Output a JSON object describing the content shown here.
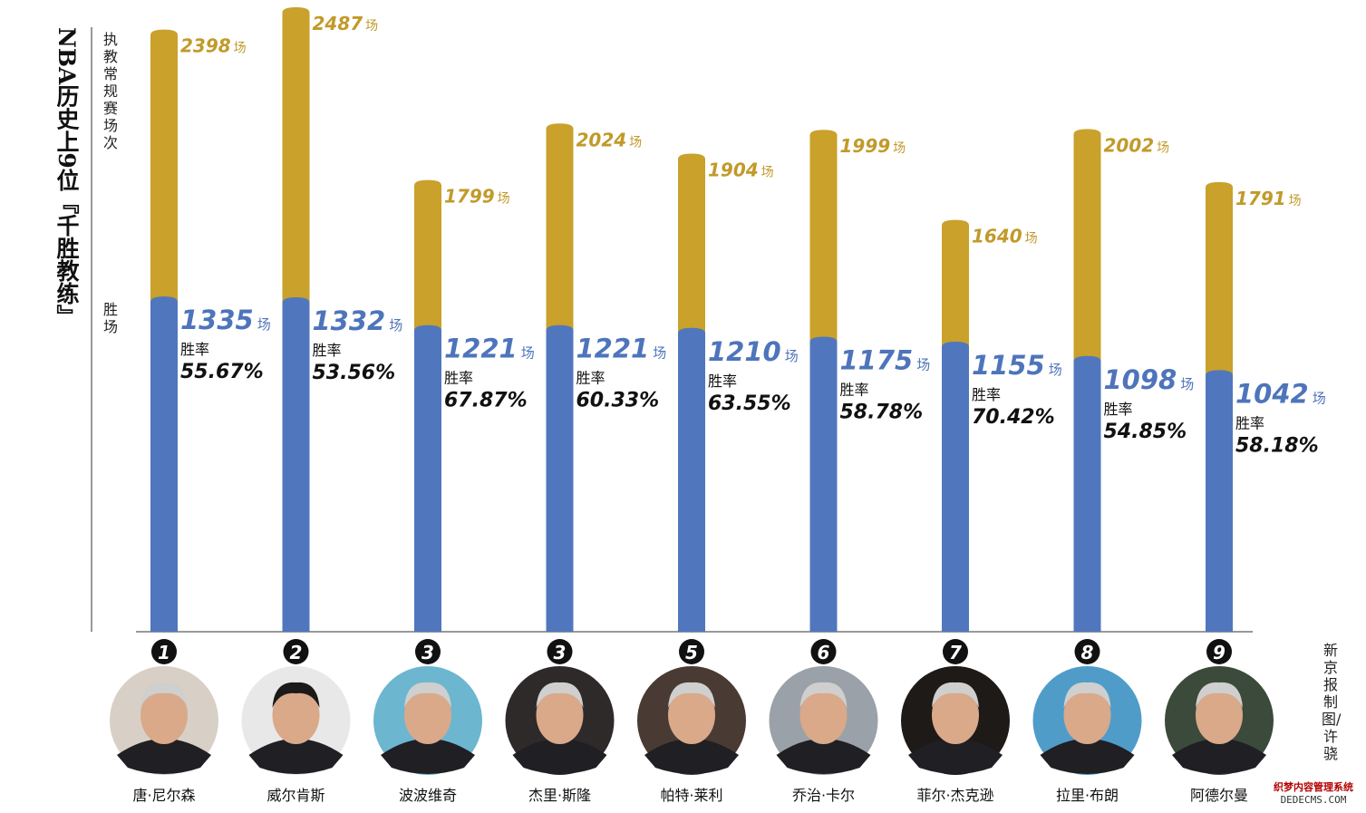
{
  "title": "NBA历史上9位『千胜教练』",
  "legend": {
    "total_label": "执教常规赛场次",
    "wins_label": "胜场"
  },
  "credit": "新京报制图/许骁",
  "watermark": {
    "cn": "织梦内容管理系统",
    "en": "DEDECMS.COM"
  },
  "colors": {
    "total": "#C9A12B",
    "wins": "#5077BE",
    "total_text": "#C29A2A",
    "wins_text": "#4E74BB",
    "text": "#111111"
  },
  "units": {
    "game": "场",
    "rate_label": "胜率"
  },
  "chart_data": {
    "type": "bar",
    "categories": [
      "唐·尼尔森",
      "威尔肯斯",
      "波波维奇",
      "杰里·斯隆",
      "帕特·莱利",
      "乔治·卡尔",
      "菲尔·杰克逊",
      "拉里·布朗",
      "阿德尔曼"
    ],
    "ranks": [
      "1",
      "2",
      "3",
      "3",
      "5",
      "6",
      "7",
      "8",
      "9"
    ],
    "series": [
      {
        "name": "执教常规赛场次",
        "values": [
          2398,
          2487,
          1799,
          2024,
          1904,
          1999,
          1640,
          2002,
          1791
        ]
      },
      {
        "name": "胜场",
        "values": [
          1335,
          1332,
          1221,
          1221,
          1210,
          1175,
          1155,
          1098,
          1042
        ]
      }
    ],
    "win_rates": [
      "55.67%",
      "53.56%",
      "67.87%",
      "60.33%",
      "63.55%",
      "58.78%",
      "70.42%",
      "54.85%",
      "58.18%"
    ],
    "ylim": [
      0,
      2487
    ]
  }
}
